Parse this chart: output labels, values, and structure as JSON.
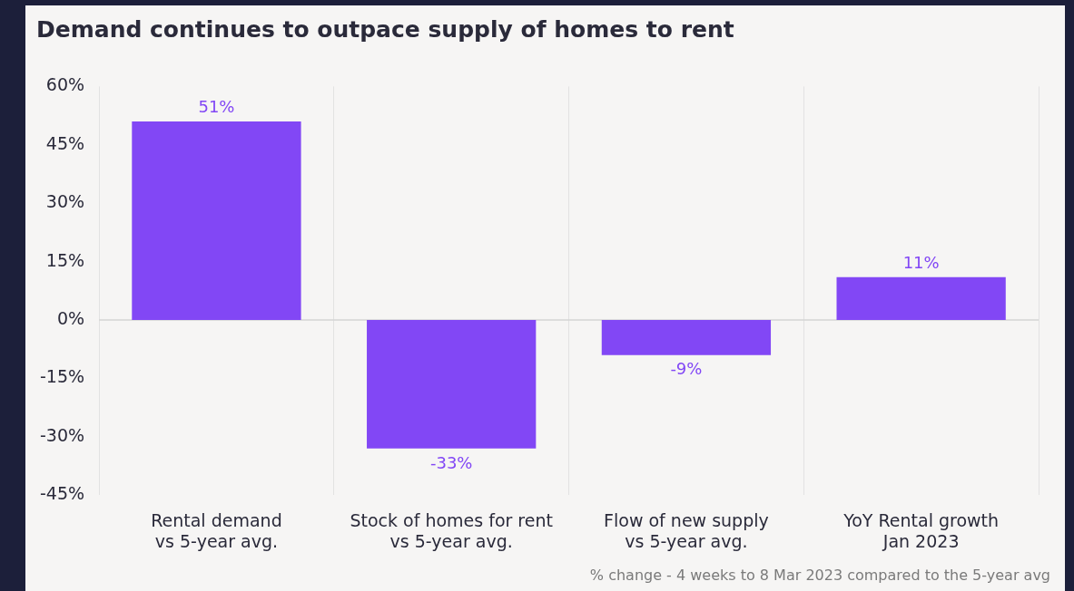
{
  "chart_data": {
    "type": "bar",
    "title": "Demand continues to outpace supply of homes to rent",
    "categories": [
      "Rental demand\nvs 5-year avg.",
      "Stock of homes for rent\nvs 5-year avg.",
      "Flow of new supply\nvs 5-year avg.",
      "YoY Rental growth\nJan 2023"
    ],
    "values": [
      51,
      -33,
      -9,
      11
    ],
    "color": "#8247f5",
    "value_labels": [
      "51%",
      "-33%",
      "-9%",
      "11%"
    ],
    "ylim": [
      -45,
      60
    ],
    "yticks": [
      {
        "value": -45,
        "label": "-45%"
      },
      {
        "value": -30,
        "label": "-30%"
      },
      {
        "value": -15,
        "label": "-15%"
      },
      {
        "value": 0,
        "label": "0%"
      },
      {
        "value": 15,
        "label": "15%"
      },
      {
        "value": 30,
        "label": "30%"
      },
      {
        "value": 45,
        "label": "45%"
      },
      {
        "value": 60,
        "label": "60%"
      }
    ],
    "grid": "x",
    "legend": false,
    "ref_lines": [
      {
        "axis": "y",
        "value": 0,
        "label": null,
        "color": "#d4d4d4"
      }
    ],
    "annotations": [
      "% change - 4 weeks to 8 Mar 2023 compared to the 5-year avg"
    ]
  }
}
